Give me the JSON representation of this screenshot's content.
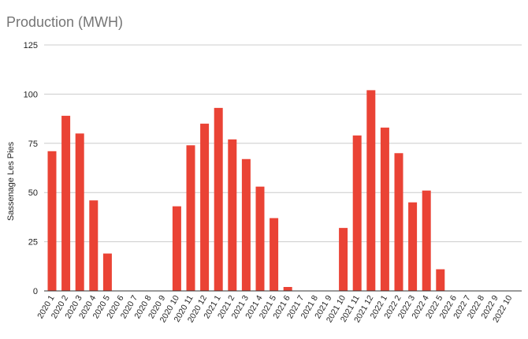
{
  "chart_data": {
    "type": "bar",
    "title": "Production (MWH)",
    "xlabel": "",
    "ylabel": "Sassenage Les Pies",
    "ylim": [
      0,
      125
    ],
    "yticks": [
      0,
      25,
      50,
      75,
      100,
      125
    ],
    "grid": true,
    "bar_color": "#ea4335",
    "categories": [
      "2020 1",
      "2020 2",
      "2020 3",
      "2020 4",
      "2020 5",
      "2020 6",
      "2020 7",
      "2020 8",
      "2020 9",
      "2020 10",
      "2020 11",
      "2020 12",
      "2021 1",
      "2021 2",
      "2021 3",
      "2021 4",
      "2021 5",
      "2021 6",
      "2021 7",
      "2021 8",
      "2021 9",
      "2021 10",
      "2021 11",
      "2021 12",
      "2022 1",
      "2022 2",
      "2022 3",
      "2022 4",
      "2022 5",
      "2022 6",
      "2022 7",
      "2022 8",
      "2022 9",
      "2022 10"
    ],
    "values": [
      71,
      89,
      80,
      46,
      19,
      0,
      0,
      0,
      0,
      43,
      74,
      85,
      93,
      77,
      67,
      53,
      37,
      2,
      0,
      0,
      0,
      32,
      79,
      102,
      83,
      70,
      45,
      51,
      11,
      0,
      0,
      0,
      0,
      0
    ]
  }
}
